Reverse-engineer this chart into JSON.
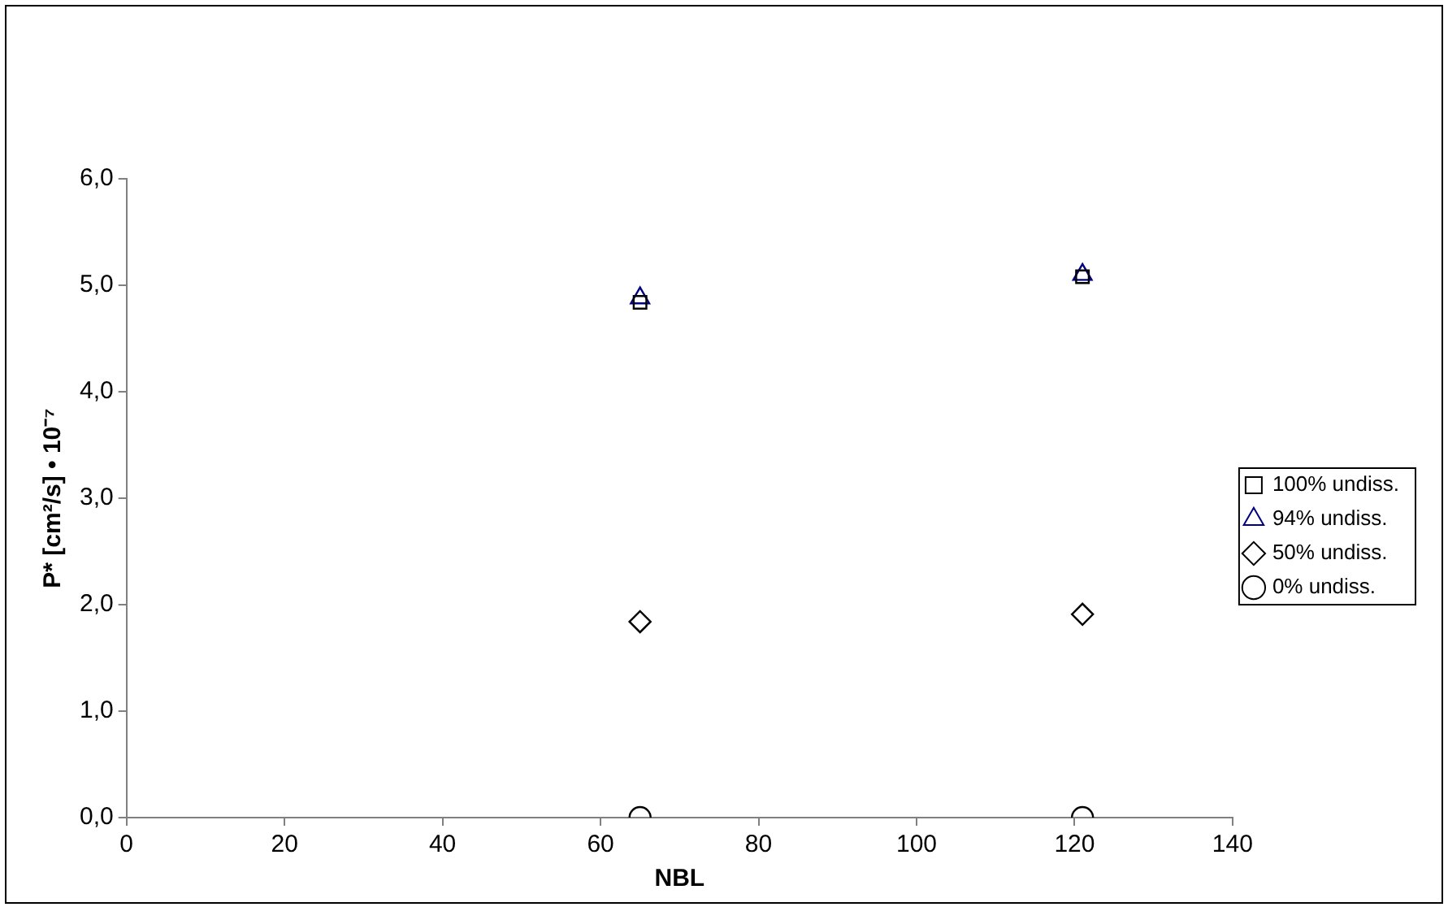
{
  "chart_data": {
    "type": "scatter",
    "xlabel": "NBL",
    "ylabel": "P* [cm²/s] • 10⁻⁷",
    "x": [
      65,
      121
    ],
    "series": [
      {
        "name": "100% undiss.",
        "color": "#000000",
        "marker": "square",
        "values": [
          4.84,
          5.08
        ]
      },
      {
        "name": "94% undiss.",
        "color": "#000080",
        "marker": "triangle",
        "values": [
          4.88,
          5.1
        ]
      },
      {
        "name": "50% undiss.",
        "color": "#000000",
        "marker": "diamond",
        "values": [
          1.84,
          1.91
        ]
      },
      {
        "name": "0% undiss.",
        "color": "#000000",
        "marker": "circle",
        "values": [
          0,
          0
        ]
      }
    ],
    "xlim": [
      0,
      140
    ],
    "xticks": [
      0,
      20,
      40,
      60,
      80,
      100,
      120,
      140
    ],
    "ylim": [
      0,
      6
    ],
    "yticks": [
      {
        "value": 0,
        "label": "0,0"
      },
      {
        "value": 1,
        "label": "1,0"
      },
      {
        "value": 2,
        "label": "2,0"
      },
      {
        "value": 3,
        "label": "3,0"
      },
      {
        "value": 4,
        "label": "4,0"
      },
      {
        "value": 5,
        "label": "5,0"
      },
      {
        "value": 6,
        "label": "6,0"
      }
    ],
    "grid": false,
    "legend": "right"
  }
}
